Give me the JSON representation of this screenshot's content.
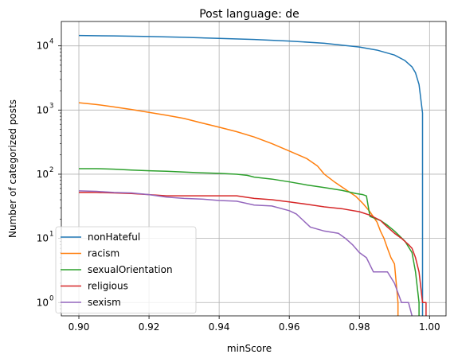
{
  "chart_data": {
    "type": "line",
    "title": "Post language: de",
    "xlabel": "minScore",
    "ylabel": "Number of categorized posts",
    "xlim": [
      0.895,
      1.0047
    ],
    "ylim": [
      0.62,
      24000
    ],
    "yscale": "log",
    "x_ticks": [
      {
        "value": 0.9,
        "label": "0.90"
      },
      {
        "value": 0.92,
        "label": "0.92"
      },
      {
        "value": 0.94,
        "label": "0.94"
      },
      {
        "value": 0.96,
        "label": "0.96"
      },
      {
        "value": 0.98,
        "label": "0.98"
      },
      {
        "value": 1.0,
        "label": "1.00"
      }
    ],
    "y_ticks": [
      {
        "value": 1,
        "base": "10",
        "exp": "0"
      },
      {
        "value": 10,
        "base": "10",
        "exp": "1"
      },
      {
        "value": 100,
        "base": "10",
        "exp": "2"
      },
      {
        "value": 1000,
        "base": "10",
        "exp": "3"
      },
      {
        "value": 10000,
        "base": "10",
        "exp": "4"
      }
    ],
    "grid": true,
    "legend_position": "lower-left",
    "series": [
      {
        "name": "nonHateful",
        "color": "#1f77b4",
        "points": [
          [
            0.9,
            14500
          ],
          [
            0.91,
            14300
          ],
          [
            0.92,
            14000
          ],
          [
            0.93,
            13600
          ],
          [
            0.94,
            13100
          ],
          [
            0.95,
            12600
          ],
          [
            0.96,
            11900
          ],
          [
            0.97,
            11000
          ],
          [
            0.98,
            9600
          ],
          [
            0.985,
            8600
          ],
          [
            0.99,
            7200
          ],
          [
            0.993,
            5900
          ],
          [
            0.995,
            4700
          ],
          [
            0.996,
            3800
          ],
          [
            0.997,
            2500
          ],
          [
            0.9975,
            1500
          ],
          [
            0.998,
            900
          ],
          [
            0.998,
            0.62
          ]
        ]
      },
      {
        "name": "racism",
        "color": "#ff7f0e",
        "points": [
          [
            0.9,
            1300
          ],
          [
            0.905,
            1220
          ],
          [
            0.91,
            1120
          ],
          [
            0.915,
            1020
          ],
          [
            0.92,
            920
          ],
          [
            0.925,
            830
          ],
          [
            0.93,
            740
          ],
          [
            0.935,
            630
          ],
          [
            0.94,
            540
          ],
          [
            0.945,
            460
          ],
          [
            0.95,
            380
          ],
          [
            0.955,
            300
          ],
          [
            0.96,
            230
          ],
          [
            0.965,
            175
          ],
          [
            0.968,
            135
          ],
          [
            0.97,
            100
          ],
          [
            0.973,
            75
          ],
          [
            0.976,
            58
          ],
          [
            0.979,
            45
          ],
          [
            0.981,
            35
          ],
          [
            0.983,
            26
          ],
          [
            0.985,
            18
          ],
          [
            0.986,
            13
          ],
          [
            0.987,
            10
          ],
          [
            0.988,
            7
          ],
          [
            0.989,
            5
          ],
          [
            0.99,
            4
          ],
          [
            0.9905,
            2
          ],
          [
            0.991,
            1
          ],
          [
            0.991,
            0.62
          ]
        ]
      },
      {
        "name": "sexualOrientation",
        "color": "#2ca02c",
        "points": [
          [
            0.9,
            122
          ],
          [
            0.905,
            122
          ],
          [
            0.91,
            120
          ],
          [
            0.915,
            116
          ],
          [
            0.92,
            113
          ],
          [
            0.925,
            111
          ],
          [
            0.93,
            108
          ],
          [
            0.935,
            105
          ],
          [
            0.94,
            103
          ],
          [
            0.945,
            100
          ],
          [
            0.948,
            96
          ],
          [
            0.95,
            90
          ],
          [
            0.955,
            84
          ],
          [
            0.96,
            76
          ],
          [
            0.965,
            68
          ],
          [
            0.97,
            62
          ],
          [
            0.975,
            56
          ],
          [
            0.979,
            50
          ],
          [
            0.981,
            48
          ],
          [
            0.982,
            46
          ],
          [
            0.983,
            22
          ],
          [
            0.986,
            19
          ],
          [
            0.988,
            16
          ],
          [
            0.99,
            13
          ],
          [
            0.993,
            9
          ],
          [
            0.995,
            6
          ],
          [
            0.996,
            3
          ],
          [
            0.997,
            1
          ],
          [
            0.997,
            0.62
          ]
        ]
      },
      {
        "name": "religious",
        "color": "#d62728",
        "points": [
          [
            0.9,
            52
          ],
          [
            0.905,
            52
          ],
          [
            0.91,
            51
          ],
          [
            0.915,
            50
          ],
          [
            0.92,
            48
          ],
          [
            0.925,
            46
          ],
          [
            0.935,
            46
          ],
          [
            0.945,
            46
          ],
          [
            0.95,
            42
          ],
          [
            0.955,
            40
          ],
          [
            0.96,
            37
          ],
          [
            0.965,
            34
          ],
          [
            0.97,
            31
          ],
          [
            0.975,
            29
          ],
          [
            0.98,
            26
          ],
          [
            0.983,
            23
          ],
          [
            0.986,
            19
          ],
          [
            0.988,
            15
          ],
          [
            0.99,
            12
          ],
          [
            0.992,
            10
          ],
          [
            0.994,
            8
          ],
          [
            0.995,
            7
          ],
          [
            0.996,
            5
          ],
          [
            0.997,
            3
          ],
          [
            0.998,
            1
          ],
          [
            0.999,
            1
          ],
          [
            0.999,
            0.62
          ]
        ]
      },
      {
        "name": "sexism",
        "color": "#9467bd",
        "points": [
          [
            0.9,
            55
          ],
          [
            0.905,
            54
          ],
          [
            0.91,
            52
          ],
          [
            0.915,
            51
          ],
          [
            0.92,
            48
          ],
          [
            0.925,
            44
          ],
          [
            0.93,
            42
          ],
          [
            0.935,
            41
          ],
          [
            0.94,
            39
          ],
          [
            0.945,
            38
          ],
          [
            0.95,
            33
          ],
          [
            0.955,
            32
          ],
          [
            0.96,
            27
          ],
          [
            0.962,
            24
          ],
          [
            0.964,
            19
          ],
          [
            0.966,
            15
          ],
          [
            0.97,
            13
          ],
          [
            0.974,
            12
          ],
          [
            0.976,
            10
          ],
          [
            0.978,
            8
          ],
          [
            0.98,
            6
          ],
          [
            0.982,
            5
          ],
          [
            0.984,
            3
          ],
          [
            0.986,
            3
          ],
          [
            0.988,
            3
          ],
          [
            0.99,
            2
          ],
          [
            0.992,
            1
          ],
          [
            0.994,
            1
          ],
          [
            0.995,
            0.62
          ]
        ]
      }
    ]
  }
}
